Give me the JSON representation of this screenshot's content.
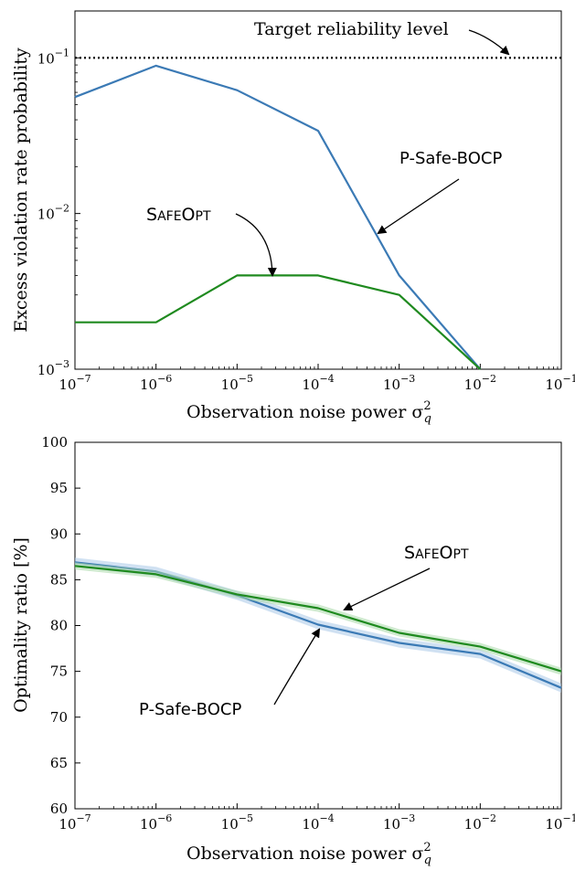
{
  "chart_data": [
    {
      "type": "line",
      "xscale": "log",
      "yscale": "log",
      "x": [
        1e-07,
        1e-06,
        1e-05,
        0.0001,
        0.001,
        0.01
      ],
      "xlim": [
        1e-07,
        0.1
      ],
      "ylim": [
        0.001,
        0.2
      ],
      "xlabel": "Observation noise power σ",
      "xlabel_sup": "2",
      "xlabel_sub": "q",
      "ylabel": "Excess violation rate probability",
      "x_ticks": [
        {
          "base": "10",
          "exp": "−7"
        },
        {
          "base": "10",
          "exp": "−6"
        },
        {
          "base": "10",
          "exp": "−5"
        },
        {
          "base": "10",
          "exp": "−4"
        },
        {
          "base": "10",
          "exp": "−3"
        },
        {
          "base": "10",
          "exp": "−2"
        },
        {
          "base": "10",
          "exp": "−1"
        }
      ],
      "y_ticks": [
        {
          "base": "10",
          "exp": "−3"
        },
        {
          "base": "10",
          "exp": "−2"
        },
        {
          "base": "10",
          "exp": "−1"
        }
      ],
      "series": [
        {
          "name": "P-Safe-BOCP",
          "color": "#3b7ab5",
          "values": [
            0.056,
            0.089,
            0.062,
            0.034,
            0.004,
            0.001
          ]
        },
        {
          "name": "SafeOpt",
          "color": "#1f8a1f",
          "values": [
            0.002,
            0.002,
            0.004,
            0.004,
            0.003,
            0.001
          ]
        }
      ],
      "reference_line": {
        "y": 0.1,
        "style": "dotted",
        "color": "#000000"
      },
      "annotations": [
        {
          "text": "Target reliability level",
          "font": "serif"
        },
        {
          "text": "P-Safe-BOCP",
          "font": "sans"
        },
        {
          "text_big": "S",
          "text_small": "AFE",
          "text_big2": "O",
          "text_small2": "PT",
          "font": "sans"
        }
      ],
      "grid": false
    },
    {
      "type": "line",
      "xscale": "log",
      "yscale": "linear",
      "x": [
        1e-07,
        1e-06,
        1e-05,
        0.0001,
        0.001,
        0.01,
        0.1
      ],
      "xlim": [
        1e-07,
        0.1
      ],
      "ylim": [
        60,
        100
      ],
      "xlabel": "Observation noise power σ",
      "xlabel_sup": "2",
      "xlabel_sub": "q",
      "ylabel": "Optimality ratio [%]",
      "x_ticks": [
        {
          "base": "10",
          "exp": "−7"
        },
        {
          "base": "10",
          "exp": "−6"
        },
        {
          "base": "10",
          "exp": "−5"
        },
        {
          "base": "10",
          "exp": "−4"
        },
        {
          "base": "10",
          "exp": "−3"
        },
        {
          "base": "10",
          "exp": "−2"
        },
        {
          "base": "10",
          "exp": "−1"
        }
      ],
      "y_ticks": [
        "60",
        "65",
        "70",
        "75",
        "80",
        "85",
        "90",
        "95",
        "100"
      ],
      "series": [
        {
          "name": "P-Safe-BOCP",
          "color": "#3b7ab5",
          "band_color": "#a9c8e8",
          "values": [
            86.9,
            85.9,
            83.3,
            80.1,
            78.1,
            76.9,
            73.2
          ],
          "band": 0.5
        },
        {
          "name": "SafeOpt",
          "color": "#1f8a1f",
          "band_color": "#a8d8a8",
          "values": [
            86.5,
            85.6,
            83.4,
            81.9,
            79.2,
            77.7,
            75.0
          ],
          "band": 0.4
        }
      ],
      "annotations": [
        {
          "text_big": "S",
          "text_small": "AFE",
          "text_big2": "O",
          "text_small2": "PT",
          "font": "sans"
        },
        {
          "text": "P-Safe-BOCP",
          "font": "sans"
        }
      ],
      "grid": false
    }
  ]
}
